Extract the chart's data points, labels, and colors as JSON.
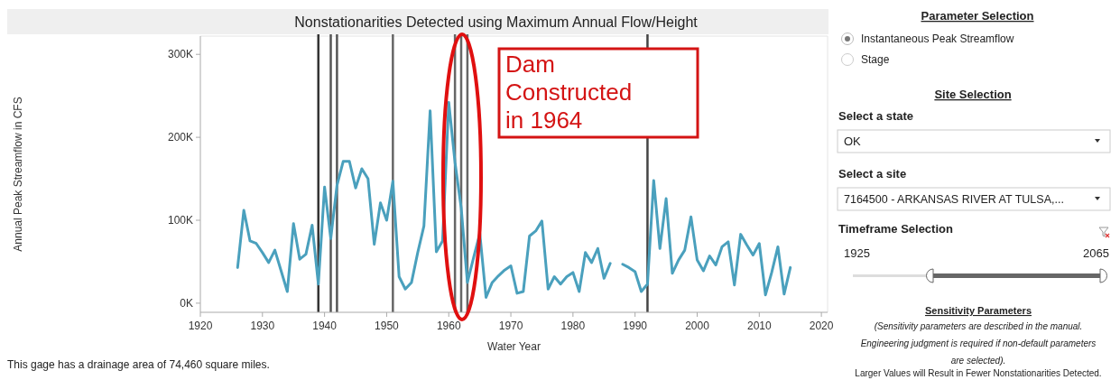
{
  "chart_data": [
    {
      "type": "line",
      "title": "Nonstationarities Detected using Maximum Annual Flow/Height",
      "xlabel": "Water Year",
      "ylabel": "Annual Peak Streamflow in CFS",
      "x": [
        1926,
        1927,
        1928,
        1929,
        1930,
        1931,
        1932,
        1933,
        1934,
        1935,
        1936,
        1937,
        1938,
        1939,
        1940,
        1941,
        1942,
        1943,
        1944,
        1945,
        1946,
        1947,
        1948,
        1949,
        1950,
        1951,
        1952,
        1953,
        1954,
        1955,
        1956,
        1957,
        1958,
        1959,
        1960,
        1961,
        1962,
        1963,
        1964,
        1965,
        1966,
        1967,
        1968,
        1969,
        1970,
        1971,
        1972,
        1973,
        1974,
        1975,
        1976,
        1977,
        1978,
        1979,
        1980,
        1981,
        1982,
        1983,
        1984,
        1985,
        1986,
        1987,
        1988,
        1989,
        1990,
        1991,
        1992,
        1993,
        1994,
        1995,
        1996,
        1997,
        1998,
        1999,
        2000,
        2001,
        2002,
        2003,
        2004,
        2005,
        2006,
        2007,
        2008,
        2009,
        2010,
        2011,
        2012,
        2013,
        2014,
        2015
      ],
      "series": [
        {
          "color": "#4aa0bd",
          "values": [
            43000,
            112000,
            75000,
            72000,
            61000,
            49000,
            64000,
            39000,
            14000,
            96000,
            53000,
            59000,
            94000,
            23000,
            140000,
            78000,
            142000,
            171000,
            171000,
            139000,
            162000,
            150000,
            71000,
            121000,
            100000,
            147000,
            32000,
            17000,
            25000,
            61000,
            93000,
            232000,
            62000,
            75000,
            242000,
            170000,
            115000,
            25000,
            55000,
            84000,
            7000,
            25000,
            33000,
            40000,
            45000,
            12000,
            14000,
            81000,
            87000,
            99000,
            17000,
            32000,
            23000,
            32000,
            37000,
            14000,
            61000,
            49000,
            66000,
            30000,
            48000,
            null,
            47000,
            43000,
            38000,
            14000,
            23000,
            148000,
            66000,
            126000,
            36000,
            52000,
            64000,
            104000,
            52000,
            39000,
            57000,
            46000,
            68000,
            74000,
            22000,
            83000,
            70000,
            58000,
            72000,
            10000,
            37000,
            68000,
            11000,
            43000
          ]
        }
      ],
      "xlim": [
        1920,
        2021
      ],
      "xticks": [
        1920,
        1930,
        1940,
        1950,
        1960,
        1970,
        1980,
        1990,
        2000,
        2010,
        2020
      ],
      "ylim": [
        -11000,
        322000
      ],
      "yticks": [
        {
          "value": 0,
          "label": "0K"
        },
        {
          "value": 100000,
          "label": "100K"
        },
        {
          "value": 200000,
          "label": "200K"
        },
        {
          "value": 300000,
          "label": "300K"
        }
      ],
      "ref_lines": [
        {
          "axis": "x",
          "value": 1939,
          "color": "#333333"
        },
        {
          "axis": "x",
          "value": 1941,
          "color": "#555555"
        },
        {
          "axis": "x",
          "value": 1942,
          "color": "#555555"
        },
        {
          "axis": "x",
          "value": 1951,
          "color": "#666666"
        },
        {
          "axis": "x",
          "value": 1961,
          "color": "#666666"
        },
        {
          "axis": "x",
          "value": 1962,
          "color": "#666666"
        },
        {
          "axis": "x",
          "value": 1963,
          "color": "#666666"
        },
        {
          "axis": "x",
          "value": 1992,
          "color": "#444444"
        }
      ],
      "annotations": [
        "Dam\nConstructed\nin 1964",
        "This gage has a drainage area of 74,460 square miles."
      ]
    },
    {
      "type": "other",
      "title": "Parameter Selection",
      "annotations": [
        "Instantaneous Peak Streamflow",
        "Stage",
        "Site Selection",
        "Select a state",
        "OK",
        "Select a site",
        "7164500 - ARKANSAS RIVER AT TULSA,...",
        "Timeframe Selection",
        "1925",
        "2065",
        "Sensitivity Parameters",
        "(Sensitivity parameters are described in the manual.\nEngineering judgment is required if non-default parameters\nare selected).",
        "Larger Values will Result in Fewer Nonstationarities Detected."
      ]
    }
  ]
}
